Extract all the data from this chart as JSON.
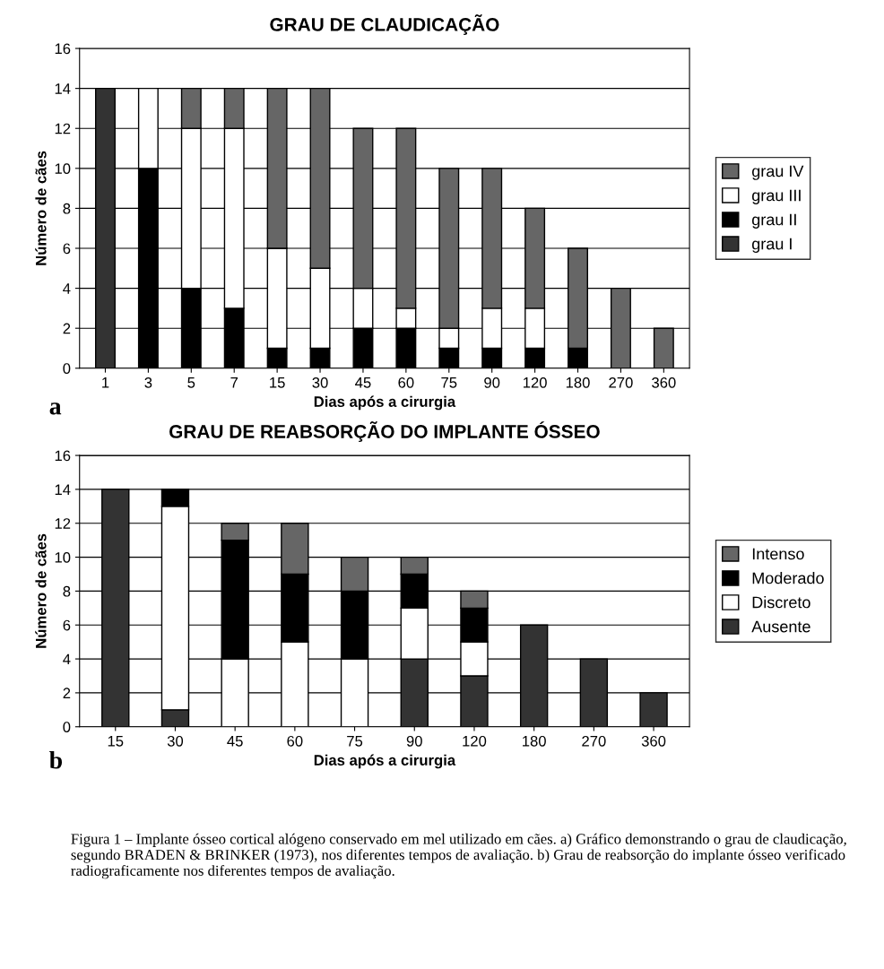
{
  "chart_data": [
    {
      "type": "bar",
      "title": "GRAU DE CLAUDICAÇÃO",
      "xlabel": "Dias após a cirurgia",
      "ylabel": "Número de cães",
      "annotations": [
        "a"
      ],
      "categories": [
        "1",
        "3",
        "5",
        "7",
        "15",
        "30",
        "45",
        "60",
        "75",
        "90",
        "120",
        "180",
        "270",
        "360"
      ],
      "stacked": true,
      "ylim": [
        0,
        16
      ],
      "yticks": [
        0,
        2,
        4,
        6,
        8,
        10,
        12,
        14,
        16
      ],
      "grid": "y",
      "legend": "right",
      "series": [
        {
          "name": "grau I",
          "color": "#333333",
          "values": [
            14,
            0,
            0,
            0,
            0,
            0,
            0,
            0,
            0,
            0,
            0,
            0,
            0,
            0
          ]
        },
        {
          "name": "grau II",
          "color": "#000000",
          "values": [
            0,
            10,
            4,
            3,
            1,
            1,
            2,
            2,
            1,
            1,
            1,
            1,
            0,
            0
          ]
        },
        {
          "name": "grau III",
          "color": "#ffffff",
          "values": [
            0,
            4,
            8,
            9,
            5,
            4,
            2,
            1,
            1,
            2,
            2,
            0,
            0,
            0
          ]
        },
        {
          "name": "grau IV",
          "color": "#666666",
          "values": [
            0,
            0,
            2,
            2,
            8,
            9,
            8,
            9,
            8,
            7,
            5,
            5,
            4,
            2
          ]
        }
      ]
    },
    {
      "type": "bar",
      "title": "GRAU DE REABSORÇÃO DO IMPLANTE ÓSSEO",
      "xlabel": "Dias após a cirurgia",
      "ylabel": "Número de cães",
      "annotations": [
        "b",
        "Figura 1 – Implante ósseo cortical alógeno conservado em mel utilizado em cães. a) Gráfico demonstrando o grau de claudicação, segundo BRADEN & BRINKER (1973), nos diferentes tempos de avaliação. b) Grau de reabsorção do implante ósseo verificado radiograficamente nos diferentes tempos de avaliação."
      ],
      "categories": [
        "15",
        "30",
        "45",
        "60",
        "75",
        "90",
        "120",
        "180",
        "270",
        "360"
      ],
      "stacked": true,
      "ylim": [
        0,
        16
      ],
      "yticks": [
        0,
        2,
        4,
        6,
        8,
        10,
        12,
        14,
        16
      ],
      "grid": "y",
      "legend": "right",
      "series": [
        {
          "name": "Ausente",
          "color": "#333333",
          "values": [
            14,
            1,
            0,
            0,
            0,
            4,
            3,
            6,
            4,
            2
          ]
        },
        {
          "name": "Discreto",
          "color": "#ffffff",
          "values": [
            0,
            12,
            4,
            5,
            4,
            3,
            2,
            0,
            0,
            0
          ]
        },
        {
          "name": "Moderado",
          "color": "#000000",
          "values": [
            0,
            1,
            7,
            4,
            4,
            2,
            2,
            0,
            0,
            0
          ]
        },
        {
          "name": "Intenso",
          "color": "#666666",
          "values": [
            0,
            0,
            1,
            3,
            2,
            1,
            1,
            0,
            0,
            0
          ]
        }
      ]
    }
  ]
}
